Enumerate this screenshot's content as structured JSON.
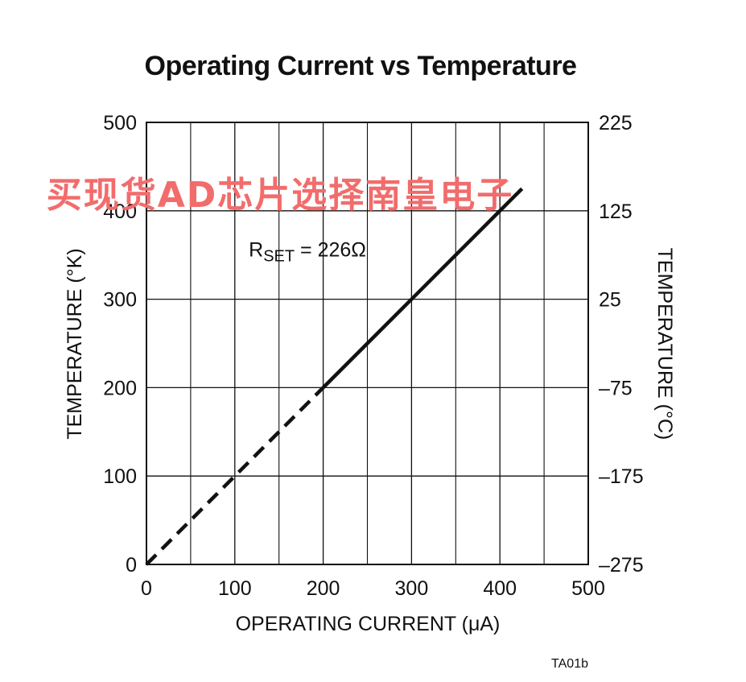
{
  "chart_data": {
    "type": "line",
    "title": "Operating Current vs Temperature",
    "xlabel": "OPERATING CURRENT (μA)",
    "ylabel": "TEMPERATURE (°K)",
    "y2label": "TEMPERATURE (°C)",
    "xlim": [
      0,
      500
    ],
    "ylim": [
      0,
      500
    ],
    "y2lim": [
      -275,
      225
    ],
    "x_ticks": [
      "0",
      "100",
      "200",
      "300",
      "400",
      "500"
    ],
    "y_ticks": [
      "0",
      "100",
      "200",
      "300",
      "400",
      "500"
    ],
    "y2_ticks": [
      "–275",
      "–175",
      "–75",
      "25",
      "125",
      "225"
    ],
    "grid": true,
    "minor_grid_x": [
      50,
      150,
      250,
      350,
      450
    ],
    "series": [
      {
        "style": "dashed",
        "x": [
          0,
          200
        ],
        "y": [
          0,
          200
        ]
      },
      {
        "style": "solid",
        "x": [
          200,
          425
        ],
        "y": [
          200,
          425
        ]
      }
    ],
    "annotations": [
      {
        "text_main": "R",
        "text_sub": "SET",
        "text_rest": " = 226Ω",
        "x": 175,
        "y": 350
      }
    ],
    "figure_id": "TA01b",
    "line_color": "#111111",
    "grid_color": "#111111"
  },
  "watermark": {
    "text": "买现货AD芯片选择南皇电子",
    "color": "#f26c6c"
  }
}
